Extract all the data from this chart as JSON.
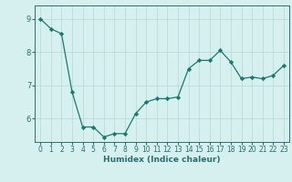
{
  "x": [
    0,
    1,
    2,
    3,
    4,
    5,
    6,
    7,
    8,
    9,
    10,
    11,
    12,
    13,
    14,
    15,
    16,
    17,
    18,
    19,
    20,
    21,
    22,
    23
  ],
  "y": [
    9.0,
    8.7,
    8.55,
    6.8,
    5.75,
    5.75,
    5.45,
    5.55,
    5.55,
    6.15,
    6.5,
    6.6,
    6.6,
    6.65,
    7.5,
    7.75,
    7.75,
    8.05,
    7.7,
    7.2,
    7.25,
    7.2,
    7.3,
    7.6
  ],
  "line_color": "#1a7a6e",
  "marker": "D",
  "marker_size": 2.2,
  "bg_color": "#d6efef",
  "grid_color": "#b8d8d8",
  "xlabel": "Humidex (Indice chaleur)",
  "ylim": [
    5.3,
    9.4
  ],
  "xlim": [
    -0.5,
    23.5
  ],
  "yticks": [
    6,
    7,
    8,
    9
  ],
  "xticks": [
    0,
    1,
    2,
    3,
    4,
    5,
    6,
    7,
    8,
    9,
    10,
    11,
    12,
    13,
    14,
    15,
    16,
    17,
    18,
    19,
    20,
    21,
    22,
    23
  ],
  "tick_color": "#2d6e6e",
  "label_fontsize": 6.5,
  "tick_fontsize": 5.5,
  "linewidth": 0.9
}
